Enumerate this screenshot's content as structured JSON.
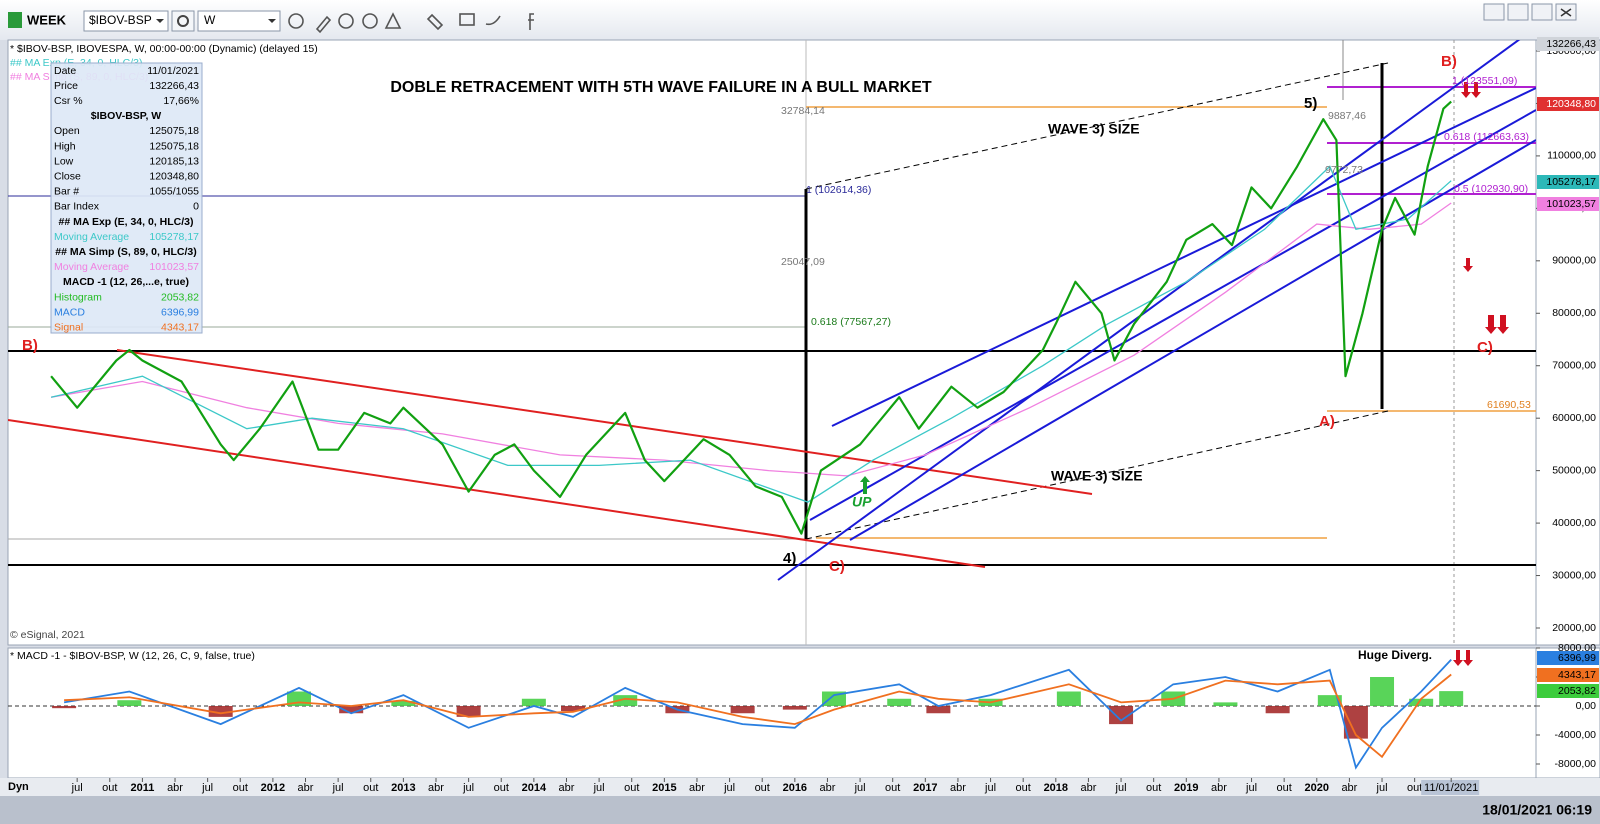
{
  "toolbar": {
    "period": "WEEK",
    "symbol": "$IBOV-BSP",
    "interval": "W"
  },
  "header": "* $IBOV-BSP, IBOVESPA, W, 00:00-00:00 (Dynamic) (delayed 15)",
  "ma_legend": [
    "## MA Exp (E, 34, 0, HLC/3)",
    "## MA Simp (S, 89, 0, HLC/3)"
  ],
  "title": "DOBLE RETRACEMENT WITH 5TH WAVE FAILURE IN A BULL MARKET",
  "info_panel": [
    {
      "label": "Date",
      "value": "11/01/2021"
    },
    {
      "label": "Price",
      "value": "132266,43"
    },
    {
      "label": "Csr %",
      "value": "17,66%"
    },
    {
      "header": "$IBOV-BSP, W"
    },
    {
      "label": "Open",
      "value": "125075,18"
    },
    {
      "label": "High",
      "value": "125075,18"
    },
    {
      "label": "Low",
      "value": "120185,13"
    },
    {
      "label": "Close",
      "value": "120348,80"
    },
    {
      "label": "Bar #",
      "value": "1055/1055"
    },
    {
      "label": "Bar Index",
      "value": "0"
    },
    {
      "header": "## MA Exp (E, 34, 0, HLC/3)"
    },
    {
      "label": "Moving Average",
      "value": "105278,17",
      "color": "#3cc8c8"
    },
    {
      "header": "## MA Simp (S, 89, 0, HLC/3)"
    },
    {
      "label": "Moving Average",
      "value": "101023,57",
      "color": "#f080e0"
    },
    {
      "header": "MACD -1 (12, 26,...e, true)"
    },
    {
      "label": "Histogram",
      "value": "2053,82",
      "color": "#22bb22"
    },
    {
      "label": "MACD",
      "value": "6396,99",
      "color": "#2a7fe0"
    },
    {
      "label": "Signal",
      "value": "4343,17",
      "color": "#f07020"
    }
  ],
  "annotations": {
    "wave_size_1": "WAVE 3) SIZE",
    "wave_size_2": "WAVE 3) SIZE",
    "b_left": "B)",
    "b_right": "B)",
    "four": "4)",
    "c_low": "C)",
    "c_right": "C)",
    "five": "5)",
    "a": "A)",
    "up": "UP",
    "divergence": "Huge Diverg.",
    "fib_1": "1 (102614,36)",
    "fib_0618": "0.618 (77567,27)",
    "range_1": "32784,14",
    "range_2": "25047,09",
    "fib_r1": "1 (123551,09)",
    "fib_r0618": "0.618 (112663,63)",
    "fib_r05": "0.5 (102930,90)",
    "low_a": "61690,53",
    "top_5": "9887,46",
    "mid_5": "9772,73",
    "copyright": "© eSignal, 2021"
  },
  "price_chart": {
    "color": "#11a011",
    "x": [
      2010.3,
      2010.5,
      2010.8,
      2010.9,
      2011.0,
      2011.3,
      2011.6,
      2011.7,
      2011.9,
      2012.15,
      2012.35,
      2012.5,
      2012.7,
      2012.9,
      2013.0,
      2013.3,
      2013.5,
      2013.7,
      2013.85,
      2014.0,
      2014.2,
      2014.4,
      2014.7,
      2014.85,
      2015.0,
      2015.3,
      2015.5,
      2015.7,
      2015.9,
      2016.05,
      2016.2,
      2016.5,
      2016.8,
      2016.95,
      2017.2,
      2017.4,
      2017.6,
      2017.9,
      2018.0,
      2018.15,
      2018.35,
      2018.45,
      2018.6,
      2018.85,
      2019.0,
      2019.2,
      2019.35,
      2019.5,
      2019.65,
      2019.85,
      2020.05,
      2020.15,
      2020.22,
      2020.35,
      2020.5,
      2020.6,
      2020.75,
      2020.85,
      2020.97,
      2021.03
    ],
    "values": [
      68000,
      62000,
      71000,
      73000,
      71000,
      67000,
      55000,
      52000,
      58000,
      67000,
      54000,
      54000,
      61000,
      59000,
      62000,
      55000,
      46000,
      53000,
      55000,
      50000,
      45000,
      53000,
      61000,
      52000,
      48000,
      56000,
      53000,
      47000,
      45000,
      38000,
      50000,
      55000,
      64000,
      58000,
      66000,
      62000,
      65000,
      73000,
      78000,
      86000,
      80000,
      71000,
      78000,
      86000,
      94000,
      97000,
      93000,
      104000,
      100000,
      108000,
      117000,
      113000,
      68000,
      80000,
      96000,
      102000,
      95000,
      108000,
      119000,
      120348.8
    ],
    "ma_fast": {
      "name": "Moving Average",
      "color": "#3cc8c8",
      "x": [
        2010.3,
        2011.0,
        2011.8,
        2012.3,
        2013.0,
        2013.8,
        2014.5,
        2015.2,
        2016.1,
        2016.6,
        2017.2,
        2017.9,
        2018.4,
        2019.0,
        2019.6,
        2020.1,
        2020.3,
        2020.7,
        2021.03
      ],
      "values": [
        64000,
        68000,
        58000,
        60000,
        58000,
        51000,
        51000,
        52000,
        44000,
        52000,
        60000,
        70000,
        78000,
        86000,
        96000,
        108000,
        96000,
        98000,
        105278.17
      ]
    },
    "ma_slow": {
      "name": "Moving Average",
      "color": "#f080e0",
      "x": [
        2010.3,
        2011.0,
        2011.8,
        2012.5,
        2013.3,
        2014.2,
        2015.0,
        2015.8,
        2016.4,
        2017.0,
        2017.8,
        2018.6,
        2019.3,
        2020.0,
        2020.4,
        2020.8,
        2021.03
      ],
      "values": [
        64000,
        67000,
        62000,
        59000,
        57000,
        53000,
        52000,
        50000,
        49000,
        53000,
        62000,
        72000,
        84000,
        97000,
        96000,
        97000,
        101023.57
      ]
    },
    "ylim": [
      20000,
      130000
    ],
    "yticks": [
      {
        "value": 130000,
        "label": "130000,00"
      },
      {
        "value": 120000,
        "label": "120000,00"
      },
      {
        "value": 110000,
        "label": "110000,00"
      },
      {
        "value": 100000,
        "label": "100000,00"
      },
      {
        "value": 90000,
        "label": "90000,00"
      },
      {
        "value": 80000,
        "label": "80000,00"
      },
      {
        "value": 70000,
        "label": "70000,00"
      },
      {
        "value": 60000,
        "label": "60000,00"
      },
      {
        "value": 50000,
        "label": "50000,00"
      },
      {
        "value": 40000,
        "label": "40000,00"
      },
      {
        "value": 30000,
        "label": "30000,00"
      },
      {
        "value": 20000,
        "label": "20000,00"
      }
    ],
    "axis_flags": {
      "last_high": "132266,43",
      "close": "120348,80",
      "ma_fast": "105278,17",
      "ma_slow": "101023,57"
    }
  },
  "macd_chart": {
    "header": "* MACD -1 - $IBOV-BSP, W (12, 26, C, 9, false, true)",
    "x": [
      2010.4,
      2010.9,
      2011.6,
      2012.2,
      2012.6,
      2013.0,
      2013.5,
      2014.0,
      2014.3,
      2014.7,
      2015.1,
      2015.6,
      2016.0,
      2016.3,
      2016.8,
      2017.1,
      2017.5,
      2018.1,
      2018.5,
      2018.9,
      2019.3,
      2019.7,
      2020.1,
      2020.3,
      2020.5,
      2020.8,
      2021.03
    ],
    "series": [
      {
        "name": "MACD",
        "color": "#2a7fe0",
        "values": [
          500,
          2000,
          -2500,
          2500,
          -1000,
          1500,
          -3000,
          0,
          -1500,
          2500,
          -500,
          -2500,
          -3000,
          1500,
          3000,
          0,
          1500,
          5000,
          -2000,
          3000,
          4000,
          2000,
          5000,
          -8500,
          -3000,
          2000,
          6396.99
        ]
      },
      {
        "name": "Signal",
        "color": "#f07020",
        "values": [
          800,
          1200,
          -1000,
          500,
          0,
          800,
          -1500,
          -1000,
          -800,
          1000,
          500,
          -1500,
          -2500,
          -500,
          2000,
          1000,
          500,
          3000,
          500,
          1000,
          3500,
          3000,
          3500,
          -4000,
          -7000,
          1000,
          4343.17
        ]
      }
    ],
    "histogram": [
      -300,
      800,
      -1500,
      2000,
      -1000,
      700,
      -1500,
      1000,
      -700,
      1500,
      -1000,
      -1000,
      -500,
      2000,
      1000,
      -1000,
      1000,
      2000,
      -2500,
      2000,
      500,
      -1000,
      1500,
      -4500,
      4000,
      1000,
      2053.82
    ],
    "ylim": [
      -8000,
      8000
    ],
    "yticks": [
      {
        "value": 8000,
        "label": "8000,00"
      },
      {
        "value": 4000,
        "label": "4000,00"
      },
      {
        "value": 0,
        "label": "0,00"
      },
      {
        "value": -4000,
        "label": "-4000,00"
      },
      {
        "value": -8000,
        "label": "-8000,00"
      }
    ],
    "axis_flags": {
      "macd": "6396,99",
      "signal": "4343,17",
      "histogram": "2053,82"
    }
  },
  "time_axis": {
    "mode": "Dyn",
    "xlim": [
      2009.97,
      2021.68
    ],
    "ticks": [
      {
        "value": 2010.5,
        "label": "jul"
      },
      {
        "value": 2010.75,
        "label": "out"
      },
      {
        "value": 2011,
        "label": "2011"
      },
      {
        "value": 2011.25,
        "label": "abr"
      },
      {
        "value": 2011.5,
        "label": "jul"
      },
      {
        "value": 2011.75,
        "label": "out"
      },
      {
        "value": 2012,
        "label": "2012"
      },
      {
        "value": 2012.25,
        "label": "abr"
      },
      {
        "value": 2012.5,
        "label": "jul"
      },
      {
        "value": 2012.75,
        "label": "out"
      },
      {
        "value": 2013,
        "label": "2013"
      },
      {
        "value": 2013.25,
        "label": "abr"
      },
      {
        "value": 2013.5,
        "label": "jul"
      },
      {
        "value": 2013.75,
        "label": "out"
      },
      {
        "value": 2014,
        "label": "2014"
      },
      {
        "value": 2014.25,
        "label": "abr"
      },
      {
        "value": 2014.5,
        "label": "jul"
      },
      {
        "value": 2014.75,
        "label": "out"
      },
      {
        "value": 2015,
        "label": "2015"
      },
      {
        "value": 2015.25,
        "label": "abr"
      },
      {
        "value": 2015.5,
        "label": "jul"
      },
      {
        "value": 2015.75,
        "label": "out"
      },
      {
        "value": 2016,
        "label": "2016"
      },
      {
        "value": 2016.25,
        "label": "abr"
      },
      {
        "value": 2016.5,
        "label": "jul"
      },
      {
        "value": 2016.75,
        "label": "out"
      },
      {
        "value": 2017,
        "label": "2017"
      },
      {
        "value": 2017.25,
        "label": "abr"
      },
      {
        "value": 2017.5,
        "label": "jul"
      },
      {
        "value": 2017.75,
        "label": "out"
      },
      {
        "value": 2018,
        "label": "2018"
      },
      {
        "value": 2018.25,
        "label": "abr"
      },
      {
        "value": 2018.5,
        "label": "jul"
      },
      {
        "value": 2018.75,
        "label": "out"
      },
      {
        "value": 2019,
        "label": "2019"
      },
      {
        "value": 2019.25,
        "label": "abr"
      },
      {
        "value": 2019.5,
        "label": "jul"
      },
      {
        "value": 2019.75,
        "label": "out"
      },
      {
        "value": 2020,
        "label": "2020"
      },
      {
        "value": 2020.25,
        "label": "abr"
      },
      {
        "value": 2020.5,
        "label": "jul"
      },
      {
        "value": 2020.75,
        "label": "out"
      },
      {
        "value": 2021.03,
        "label": "11/01/2021"
      }
    ]
  },
  "status_bar": {
    "timestamp": "18/01/2021 06:19"
  }
}
